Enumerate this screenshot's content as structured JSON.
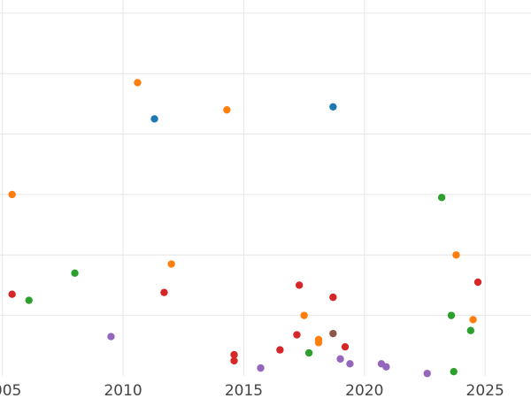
{
  "chart_data": {
    "type": "scatter",
    "title": "",
    "xlabel": "",
    "ylabel": "",
    "xlim": [
      2004.9,
      2026.9
    ],
    "ylim": [
      0,
      6.1
    ],
    "x_ticks": [
      2005,
      2010,
      2015,
      2020,
      2025
    ],
    "x_tick_labels": [
      "2005",
      "2010",
      "2015",
      "2020",
      "2025"
    ],
    "y_grid": [
      1,
      2,
      3,
      4,
      5,
      6
    ],
    "grid": true,
    "legend": "none",
    "colors": {
      "blue": "#1f77b4",
      "orange": "#ff7f0e",
      "green": "#2ca02c",
      "red": "#d62728",
      "purple": "#9467bd",
      "brown": "#8c564b"
    },
    "points": [
      {
        "x": 2011.3,
        "y": 4.25,
        "color": "blue"
      },
      {
        "x": 2018.7,
        "y": 4.45,
        "color": "blue"
      },
      {
        "x": 2005.4,
        "y": 3.0,
        "color": "orange"
      },
      {
        "x": 2010.6,
        "y": 4.85,
        "color": "orange"
      },
      {
        "x": 2012.0,
        "y": 1.85,
        "color": "orange"
      },
      {
        "x": 2014.3,
        "y": 4.4,
        "color": "orange"
      },
      {
        "x": 2017.5,
        "y": 1.0,
        "color": "orange"
      },
      {
        "x": 2018.1,
        "y": 0.6,
        "color": "orange"
      },
      {
        "x": 2018.1,
        "y": 0.55,
        "color": "orange"
      },
      {
        "x": 2023.8,
        "y": 2.0,
        "color": "orange"
      },
      {
        "x": 2024.5,
        "y": 0.93,
        "color": "orange"
      },
      {
        "x": 2008.0,
        "y": 1.7,
        "color": "green"
      },
      {
        "x": 2006.1,
        "y": 1.25,
        "color": "green"
      },
      {
        "x": 2017.7,
        "y": 0.38,
        "color": "green"
      },
      {
        "x": 2023.2,
        "y": 2.95,
        "color": "green"
      },
      {
        "x": 2023.6,
        "y": 1.0,
        "color": "green"
      },
      {
        "x": 2024.4,
        "y": 0.75,
        "color": "green"
      },
      {
        "x": 2023.7,
        "y": 0.07,
        "color": "green"
      },
      {
        "x": 2005.4,
        "y": 1.35,
        "color": "red"
      },
      {
        "x": 2011.7,
        "y": 1.38,
        "color": "red"
      },
      {
        "x": 2014.6,
        "y": 0.35,
        "color": "red"
      },
      {
        "x": 2014.6,
        "y": 0.25,
        "color": "red"
      },
      {
        "x": 2016.5,
        "y": 0.43,
        "color": "red"
      },
      {
        "x": 2017.2,
        "y": 0.68,
        "color": "red"
      },
      {
        "x": 2017.3,
        "y": 1.5,
        "color": "red"
      },
      {
        "x": 2018.7,
        "y": 1.3,
        "color": "red"
      },
      {
        "x": 2019.2,
        "y": 0.48,
        "color": "red"
      },
      {
        "x": 2024.7,
        "y": 1.55,
        "color": "red"
      },
      {
        "x": 2009.5,
        "y": 0.65,
        "color": "purple"
      },
      {
        "x": 2015.7,
        "y": 0.13,
        "color": "purple"
      },
      {
        "x": 2019.0,
        "y": 0.28,
        "color": "purple"
      },
      {
        "x": 2019.4,
        "y": 0.2,
        "color": "purple"
      },
      {
        "x": 2020.7,
        "y": 0.2,
        "color": "purple"
      },
      {
        "x": 2020.9,
        "y": 0.15,
        "color": "purple"
      },
      {
        "x": 2022.6,
        "y": 0.04,
        "color": "purple"
      },
      {
        "x": 2018.7,
        "y": 0.7,
        "color": "brown"
      }
    ]
  }
}
